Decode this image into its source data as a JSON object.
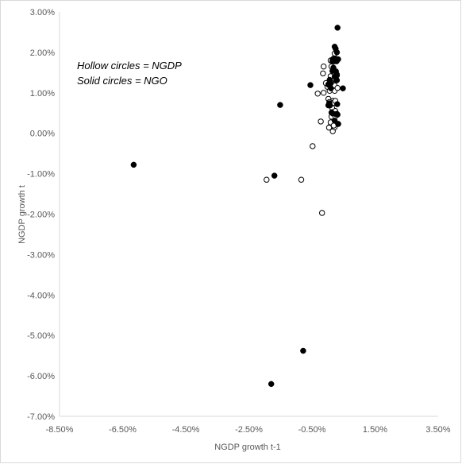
{
  "chart_data": {
    "type": "scatter",
    "xlabel": "NGDP growth t-1",
    "ylabel": "NGDP growth t",
    "xlim": [
      -0.085,
      0.035
    ],
    "ylim": [
      -0.07,
      0.03
    ],
    "x_ticks": [
      -0.085,
      -0.065,
      -0.045,
      -0.025,
      -0.005,
      0.015,
      0.035
    ],
    "x_tick_labels": [
      "-8.50%",
      "-6.50%",
      "-4.50%",
      "-2.50%",
      "-0.50%",
      "1.50%",
      "3.50%"
    ],
    "y_ticks": [
      0.03,
      0.02,
      0.01,
      0.0,
      -0.01,
      -0.02,
      -0.03,
      -0.04,
      -0.05,
      -0.06,
      -0.07
    ],
    "y_tick_labels": [
      "3.00%",
      "2.00%",
      "1.00%",
      "0.00%",
      "-1.00%",
      "-2.00%",
      "-3.00%",
      "-4.00%",
      "-5.00%",
      "-6.00%",
      "-7.00%"
    ],
    "grid": false,
    "annotations": [
      "Hollow circles = NGDP",
      "Solid circles = NGO"
    ],
    "series": [
      {
        "marker": "hollow",
        "x": [
          -0.0032,
          -0.0015,
          -0.0013,
          0.0012,
          -0.0022,
          -0.0006,
          -0.0001,
          0.0003,
          0.0006,
          -0.0013,
          0.0002,
          0.0009,
          0.0011,
          0.0011,
          0.001,
          0.0014,
          0.0017,
          0.0014,
          0.0018,
          0.0022,
          0.0024,
          0.0015,
          0.0007,
          0.0016,
          0.0022,
          0.0024,
          0.0012,
          0.0009,
          0.0004,
          0.0005,
          0.0019,
          0.0024,
          0.0022,
          0.0022,
          0.0009,
          0.0002,
          -0.0048,
          -0.0084,
          -0.0018,
          -0.0194,
          0.0026,
          0.0029,
          0.0031,
          0.0022
        ],
        "y": [
          0.0098,
          0.0148,
          0.0165,
          0.0165,
          0.0029,
          0.0124,
          0.0115,
          0.012,
          0.0105,
          0.01,
          0.0085,
          0.0141,
          0.0125,
          0.0113,
          0.007,
          0.0063,
          0.008,
          0.0052,
          0.0075,
          0.0118,
          0.008,
          0.0018,
          0.0016,
          0.0005,
          0.0015,
          0.0055,
          0.0041,
          0.0027,
          0.0014,
          0.0077,
          0.0019,
          0.0042,
          0.0105,
          0.0197,
          0.018,
          0.012,
          -0.0032,
          -0.0115,
          -0.0197,
          -0.0115,
          0.0132,
          0.0145,
          0.0112,
          0.018
        ]
      },
      {
        "marker": "solid",
        "x": [
          -0.0615,
          -0.0055,
          0.0002,
          0.0016,
          0.0018,
          0.0022,
          0.0025,
          0.0029,
          0.0031,
          0.0033,
          0.0006,
          0.001,
          0.0015,
          0.0021,
          0.0007,
          0.0005,
          0.0015,
          0.0022,
          0.0026,
          0.0029,
          0.0012,
          0.0016,
          0.0022,
          0.0026,
          0.0029,
          0.0029,
          0.0028,
          0.0009,
          0.0031,
          0.0048,
          0.003,
          0.0033,
          0.0006,
          0.0025,
          0.0033,
          0.002,
          0.0002,
          -0.0078,
          -0.0151,
          -0.0169,
          -0.0179
        ],
        "y": [
          -0.0078,
          0.0119,
          0.0069,
          0.0183,
          0.0162,
          0.0214,
          0.0184,
          0.02,
          0.0261,
          0.0183,
          0.0132,
          0.0111,
          0.0154,
          0.0178,
          0.0069,
          0.0074,
          0.0178,
          0.014,
          0.0153,
          0.0131,
          0.0051,
          0.0049,
          0.0031,
          0.0047,
          0.0048,
          0.0143,
          0.0178,
          0.0123,
          0.0046,
          0.0111,
          0.0072,
          0.0023,
          0.0122,
          0.0209,
          0.0023,
          0.0185,
          0.0121,
          -0.0538,
          0.007,
          -0.0105,
          -0.062
        ]
      }
    ]
  }
}
